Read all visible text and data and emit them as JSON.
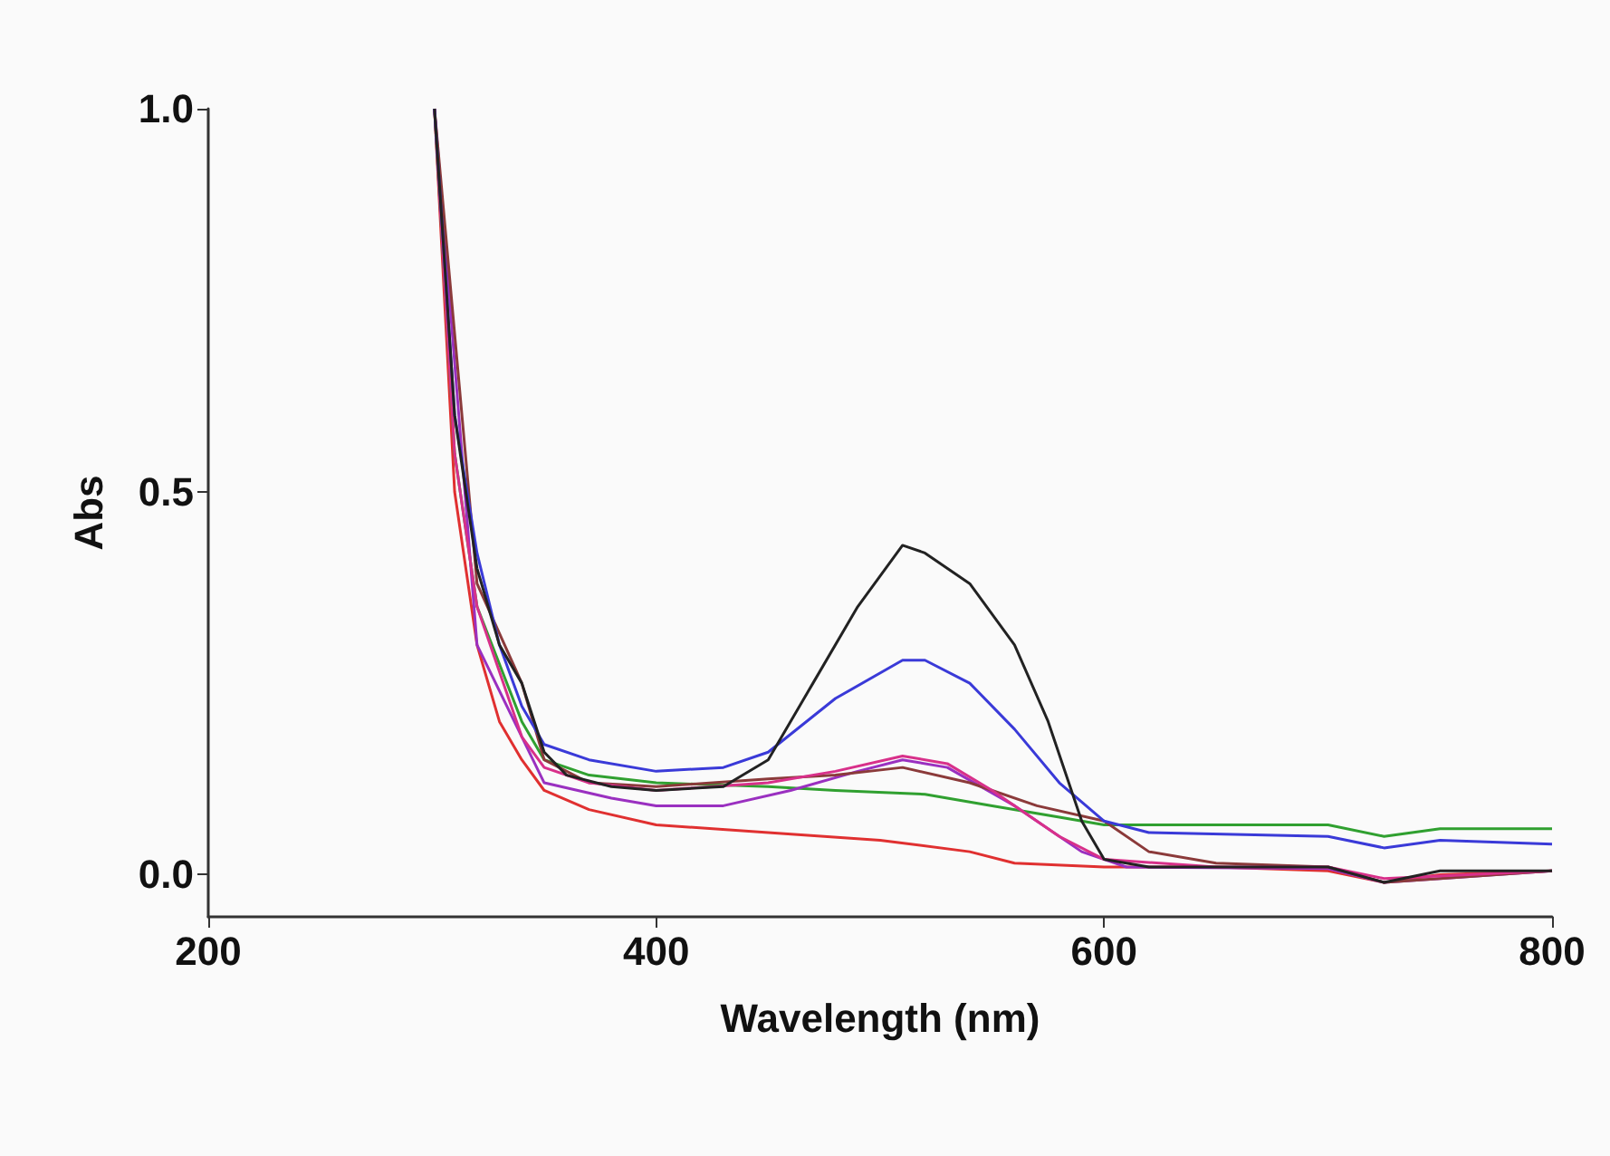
{
  "chart_data": {
    "type": "line",
    "xlabel": "Wavelength (nm)",
    "ylabel": "Abs",
    "xlim": [
      200,
      800
    ],
    "xticks": [
      200,
      400,
      600,
      800
    ],
    "ylim": [
      -0.055,
      1.0
    ],
    "yticks": [
      {
        "value": 0,
        "label": "0.0"
      },
      {
        "value": 0.5,
        "label": "0.5"
      },
      {
        "value": 1,
        "label": "1.0"
      }
    ],
    "marker": "none",
    "line_style": "solid",
    "series": [
      {
        "color": "#e03030",
        "x": [
          301,
          310,
          320,
          330,
          340,
          350,
          370,
          400,
          450,
          500,
          540,
          560,
          600,
          650,
          700,
          725,
          750,
          800
        ],
        "values": [
          1.0,
          0.5,
          0.3,
          0.2,
          0.15,
          0.11,
          0.085,
          0.065,
          0.055,
          0.045,
          0.03,
          0.015,
          0.01,
          0.01,
          0.005,
          -0.01,
          0.0,
          0.005
        ]
      },
      {
        "color": "#30a030",
        "x": [
          301,
          310,
          320,
          340,
          350,
          370,
          400,
          450,
          480,
          520,
          550,
          580,
          600,
          700,
          725,
          750,
          800
        ],
        "values": [
          1.0,
          0.55,
          0.35,
          0.2,
          0.15,
          0.13,
          0.12,
          0.115,
          0.11,
          0.105,
          0.09,
          0.075,
          0.065,
          0.065,
          0.05,
          0.06,
          0.06
        ]
      },
      {
        "color": "#9a30c0",
        "x": [
          301,
          320,
          350,
          380,
          400,
          430,
          460,
          490,
          510,
          530,
          560,
          590,
          610,
          700,
          725,
          800
        ],
        "values": [
          1.0,
          0.3,
          0.12,
          0.1,
          0.09,
          0.09,
          0.11,
          0.135,
          0.15,
          0.14,
          0.09,
          0.03,
          0.01,
          0.008,
          -0.01,
          0.005
        ]
      },
      {
        "color": "#8b3a3a",
        "x": [
          301,
          320,
          340,
          350,
          370,
          400,
          450,
          480,
          510,
          540,
          570,
          600,
          620,
          650,
          700,
          725,
          800
        ],
        "values": [
          1.0,
          0.38,
          0.25,
          0.15,
          0.12,
          0.115,
          0.125,
          0.13,
          0.14,
          0.12,
          0.09,
          0.07,
          0.03,
          0.015,
          0.01,
          -0.01,
          0.005
        ]
      },
      {
        "color": "#d8308a",
        "x": [
          301,
          310,
          320,
          340,
          350,
          370,
          400,
          450,
          480,
          510,
          530,
          550,
          580,
          600,
          650,
          700,
          725,
          800
        ],
        "values": [
          1.0,
          0.55,
          0.35,
          0.18,
          0.14,
          0.12,
          0.11,
          0.12,
          0.135,
          0.155,
          0.145,
          0.11,
          0.05,
          0.02,
          0.01,
          0.01,
          -0.005,
          0.005
        ]
      },
      {
        "color": "#3a3ad8",
        "x": [
          301,
          310,
          320,
          330,
          340,
          350,
          370,
          400,
          430,
          450,
          480,
          510,
          520,
          540,
          560,
          580,
          600,
          620,
          700,
          725,
          750,
          800
        ],
        "values": [
          1.0,
          0.6,
          0.42,
          0.3,
          0.22,
          0.17,
          0.15,
          0.135,
          0.14,
          0.16,
          0.23,
          0.28,
          0.28,
          0.25,
          0.19,
          0.12,
          0.07,
          0.055,
          0.05,
          0.035,
          0.045,
          0.04
        ]
      },
      {
        "color": "#222222",
        "x": [
          301,
          310,
          320,
          330,
          340,
          350,
          360,
          380,
          400,
          430,
          450,
          470,
          490,
          510,
          520,
          540,
          560,
          575,
          590,
          600,
          620,
          700,
          725,
          750,
          800
        ],
        "values": [
          1.0,
          0.6,
          0.4,
          0.3,
          0.25,
          0.16,
          0.13,
          0.115,
          0.11,
          0.115,
          0.15,
          0.25,
          0.35,
          0.43,
          0.42,
          0.38,
          0.3,
          0.2,
          0.07,
          0.02,
          0.01,
          0.01,
          -0.01,
          0.005,
          0.005
        ]
      }
    ]
  }
}
